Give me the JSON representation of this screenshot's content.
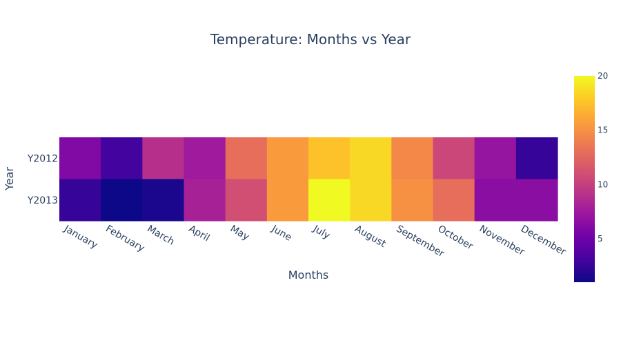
{
  "chart_data": {
    "type": "heatmap",
    "title": "Temperature: Months vs Year",
    "xlabel": "Months",
    "ylabel": "Year",
    "x": [
      "January",
      "February",
      "March",
      "April",
      "May",
      "June",
      "July",
      "August",
      "September",
      "October",
      "November",
      "December"
    ],
    "y": [
      "Y2012",
      "Y2013"
    ],
    "z": [
      [
        6,
        3,
        9,
        7.5,
        13,
        15.5,
        17.5,
        18.5,
        14.5,
        10.5,
        7,
        2.5
      ],
      [
        2.5,
        1,
        1.5,
        8,
        11,
        15.5,
        20,
        18.5,
        15,
        13,
        6.5,
        6.5
      ]
    ],
    "colorbar": {
      "range": [
        1,
        20
      ],
      "ticks": [
        5,
        10,
        15,
        20
      ]
    },
    "colorscale": [
      "#0d0887",
      "#46039f",
      "#7201a8",
      "#9c179e",
      "#bd3786",
      "#d8576b",
      "#ed7953",
      "#fb9f3a",
      "#fdca26",
      "#f0f921"
    ]
  }
}
